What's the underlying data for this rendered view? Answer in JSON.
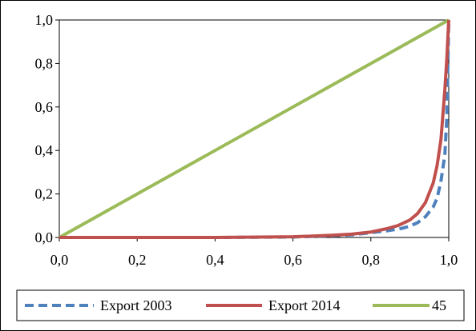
{
  "chart_data": {
    "type": "line",
    "title": "",
    "xlabel": "",
    "ylabel": "",
    "xlim": [
      0,
      1
    ],
    "ylim": [
      0,
      1
    ],
    "x_ticks": [
      "0,0",
      "0,2",
      "0,4",
      "0,6",
      "0,8",
      "1,0"
    ],
    "y_ticks": [
      "0,0",
      "0,2",
      "0,4",
      "0,6",
      "0,8",
      "1,0"
    ],
    "grid": false,
    "legend_position": "bottom",
    "series": [
      {
        "name": "Export 2003",
        "color": "#4f81bd",
        "dash": "dashed",
        "x": [
          0.0,
          0.2,
          0.4,
          0.6,
          0.7,
          0.75,
          0.8,
          0.84,
          0.88,
          0.9,
          0.92,
          0.94,
          0.96,
          0.97,
          0.98,
          0.99,
          0.995,
          1.0
        ],
        "y": [
          0.0,
          0.0,
          0.0,
          0.002,
          0.008,
          0.012,
          0.022,
          0.03,
          0.042,
          0.052,
          0.068,
          0.095,
          0.14,
          0.18,
          0.26,
          0.38,
          0.55,
          1.0
        ]
      },
      {
        "name": "Export 2014",
        "color": "#c0504d",
        "dash": "solid",
        "x": [
          0.0,
          0.2,
          0.4,
          0.6,
          0.7,
          0.75,
          0.8,
          0.84,
          0.87,
          0.9,
          0.92,
          0.94,
          0.96,
          0.97,
          0.98,
          0.99,
          0.995,
          1.0
        ],
        "y": [
          0.0,
          0.0,
          0.0,
          0.003,
          0.01,
          0.015,
          0.025,
          0.04,
          0.055,
          0.08,
          0.11,
          0.16,
          0.25,
          0.33,
          0.45,
          0.68,
          0.82,
          1.0
        ]
      },
      {
        "name": "45",
        "color": "#9bbb59",
        "dash": "solid",
        "x": [
          0.0,
          1.0
        ],
        "y": [
          0.0,
          1.0
        ]
      }
    ]
  }
}
